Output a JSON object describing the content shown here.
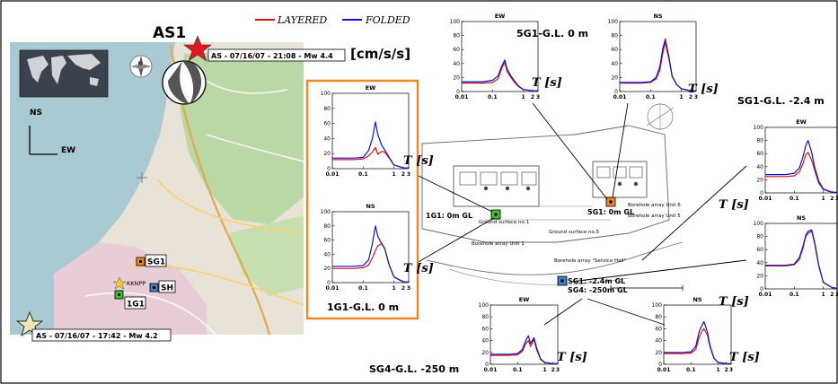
{
  "legend": {
    "series_a": "LAYERED",
    "series_b": "FOLDED",
    "color_a": "#e0101a",
    "color_b": "#0a14c8"
  },
  "event_main": {
    "name": "AS1",
    "label": "AS - 07/16/07 - 21:08 - Mw 4.4"
  },
  "event_second": {
    "label": "AS - 07/16/07 - 17:42 - Mw 4.2"
  },
  "units": "[cm/s/s]",
  "axes_labels": {
    "ns": "NS",
    "ew": "EW"
  },
  "stations": [
    {
      "id": "sg1",
      "label": "SG1"
    },
    {
      "id": "sh",
      "label": "SH"
    },
    {
      "id": "ig1",
      "label": "1G1"
    },
    {
      "id": "kknpp",
      "label": "KKNPP"
    }
  ],
  "plan": {
    "label_1g1": "1G1: 0m GL",
    "label_5g1": "5G1: 0m GL",
    "label_sg1": "SG1: -2.4m GL",
    "label_sg4": "SG4: -250m GL",
    "notes": [
      "Ground surface no.1",
      "Ground surface no.5",
      "Borehole array Unit 1",
      "Borehole array Unit 5",
      "Borehole array Unit 6",
      "Borehole array \"Service Hall\""
    ]
  },
  "group_titles": {
    "g1": "1G1-G.L. 0 m",
    "g5": "5G1-G.L. 0 m",
    "sg1": "SG1-G.L. -2.4 m",
    "sg4": "SG4-G.L. -250 m"
  },
  "t_label": "T [s]",
  "icons": [
    "world-map-icon",
    "compass-rose-icon",
    "beachball-icon",
    "red-star-icon",
    "yellow-star-icon"
  ],
  "chart_data": [
    {
      "id": "1g1-ew",
      "type": "line",
      "title": "EW",
      "x_scale": "log",
      "xlim": [
        0.01,
        3
      ],
      "ylim": [
        0,
        100
      ],
      "yticks": [
        0,
        20,
        40,
        60,
        80,
        100
      ],
      "xticks": [
        "0.01",
        "0.1",
        "1",
        "2",
        "3"
      ],
      "x": [
        0.01,
        0.05,
        0.1,
        0.15,
        0.2,
        0.25,
        0.3,
        0.4,
        0.5,
        0.7,
        1.0,
        2.0,
        3.0
      ],
      "series": [
        {
          "values": [
            12,
            12,
            13,
            17,
            22,
            28,
            19,
            23,
            22,
            14,
            5,
            1,
            1
          ]
        },
        {
          "values": [
            14,
            14,
            15,
            24,
            40,
            62,
            45,
            31,
            25,
            15,
            5,
            1,
            1
          ]
        }
      ]
    },
    {
      "id": "1g1-ns",
      "type": "line",
      "title": "NS",
      "x_scale": "log",
      "xlim": [
        0.01,
        3
      ],
      "ylim": [
        0,
        100
      ],
      "yticks": [
        0,
        20,
        40,
        60,
        80,
        100
      ],
      "xticks": [
        "0.01",
        "0.1",
        "1",
        "2",
        "3"
      ],
      "x": [
        0.01,
        0.05,
        0.1,
        0.15,
        0.2,
        0.25,
        0.3,
        0.4,
        0.5,
        0.7,
        1.0,
        2.0,
        3.0
      ],
      "series": [
        {
          "values": [
            20,
            20,
            21,
            25,
            35,
            45,
            52,
            55,
            48,
            25,
            8,
            1,
            1
          ]
        },
        {
          "values": [
            23,
            23,
            24,
            32,
            55,
            80,
            65,
            55,
            48,
            25,
            8,
            1,
            1
          ]
        }
      ]
    },
    {
      "id": "5g1-ew",
      "type": "line",
      "title": "EW",
      "x_scale": "log",
      "xlim": [
        0.01,
        3
      ],
      "ylim": [
        0,
        100
      ],
      "yticks": [
        0,
        20,
        40,
        60,
        80,
        100
      ],
      "xticks": [
        "0.01",
        "0.1",
        "1",
        "2",
        "3"
      ],
      "x": [
        0.01,
        0.05,
        0.1,
        0.15,
        0.2,
        0.25,
        0.3,
        0.4,
        0.5,
        0.7,
        1.0,
        2.0,
        3.0
      ],
      "series": [
        {
          "values": [
            12,
            12,
            13,
            18,
            33,
            42,
            28,
            20,
            14,
            7,
            3,
            1,
            1
          ]
        },
        {
          "values": [
            14,
            14,
            16,
            22,
            36,
            45,
            32,
            22,
            16,
            8,
            3,
            1,
            1
          ]
        }
      ]
    },
    {
      "id": "5g1-ns",
      "type": "line",
      "title": "NS",
      "x_scale": "log",
      "xlim": [
        0.01,
        3
      ],
      "ylim": [
        0,
        100
      ],
      "yticks": [
        0,
        20,
        40,
        60,
        80,
        100
      ],
      "xticks": [
        "0.01",
        "0.1",
        "1",
        "2",
        "3"
      ],
      "x": [
        0.01,
        0.05,
        0.1,
        0.15,
        0.2,
        0.25,
        0.3,
        0.4,
        0.5,
        0.7,
        1.0,
        2.0,
        3.0
      ],
      "series": [
        {
          "values": [
            12,
            12,
            13,
            18,
            30,
            55,
            70,
            45,
            22,
            10,
            4,
            1,
            1
          ]
        },
        {
          "values": [
            13,
            13,
            14,
            20,
            35,
            62,
            75,
            48,
            22,
            10,
            4,
            1,
            1
          ]
        }
      ]
    },
    {
      "id": "sg1-ew",
      "type": "line",
      "title": "EW",
      "x_scale": "log",
      "xlim": [
        0.01,
        3
      ],
      "ylim": [
        0,
        100
      ],
      "yticks": [
        0,
        20,
        40,
        60,
        80,
        100
      ],
      "xticks": [
        "0.01",
        "0.1",
        "1",
        "2",
        "3"
      ],
      "x": [
        0.01,
        0.05,
        0.1,
        0.15,
        0.2,
        0.25,
        0.3,
        0.4,
        0.5,
        0.7,
        1.0,
        2.0,
        3.0
      ],
      "series": [
        {
          "values": [
            25,
            25,
            26,
            32,
            45,
            58,
            62,
            50,
            35,
            15,
            5,
            1,
            1
          ]
        },
        {
          "values": [
            28,
            28,
            30,
            38,
            55,
            72,
            80,
            62,
            40,
            18,
            6,
            1,
            1
          ]
        }
      ]
    },
    {
      "id": "sg1-ns",
      "type": "line",
      "title": "NS",
      "x_scale": "log",
      "xlim": [
        0.01,
        3
      ],
      "ylim": [
        0,
        100
      ],
      "yticks": [
        0,
        20,
        40,
        60,
        80,
        100
      ],
      "xticks": [
        "0.01",
        "0.1",
        "1",
        "2",
        "3"
      ],
      "x": [
        0.01,
        0.05,
        0.1,
        0.15,
        0.2,
        0.25,
        0.3,
        0.4,
        0.5,
        0.7,
        1.0,
        2.0,
        3.0
      ],
      "series": [
        {
          "values": [
            35,
            35,
            37,
            45,
            62,
            80,
            85,
            88,
            70,
            35,
            10,
            2,
            1
          ]
        },
        {
          "values": [
            36,
            36,
            38,
            48,
            65,
            82,
            88,
            90,
            72,
            36,
            10,
            2,
            1
          ]
        }
      ]
    },
    {
      "id": "sg4-ew",
      "type": "line",
      "title": "EW",
      "x_scale": "log",
      "xlim": [
        0.01,
        3
      ],
      "ylim": [
        0,
        100
      ],
      "yticks": [
        0,
        20,
        40,
        60,
        80,
        100
      ],
      "xticks": [
        "0.01",
        "0.1",
        "1",
        "2",
        "3"
      ],
      "x": [
        0.01,
        0.05,
        0.1,
        0.15,
        0.2,
        0.25,
        0.3,
        0.4,
        0.5,
        0.7,
        1.0,
        2.0,
        3.0
      ],
      "series": [
        {
          "values": [
            15,
            15,
            16,
            22,
            35,
            40,
            30,
            42,
            25,
            8,
            3,
            1,
            1
          ]
        },
        {
          "values": [
            17,
            17,
            18,
            25,
            40,
            48,
            35,
            45,
            28,
            9,
            3,
            1,
            1
          ]
        }
      ]
    },
    {
      "id": "sg4-ns",
      "type": "line",
      "title": "NS",
      "x_scale": "log",
      "xlim": [
        0.01,
        3
      ],
      "ylim": [
        0,
        100
      ],
      "yticks": [
        0,
        20,
        40,
        60,
        80,
        100
      ],
      "xticks": [
        "0.01",
        "0.1",
        "1",
        "2",
        "3"
      ],
      "x": [
        0.01,
        0.05,
        0.1,
        0.15,
        0.2,
        0.25,
        0.3,
        0.4,
        0.5,
        0.7,
        1.0,
        2.0,
        3.0
      ],
      "series": [
        {
          "values": [
            18,
            18,
            19,
            25,
            45,
            55,
            60,
            50,
            30,
            10,
            3,
            1,
            1
          ]
        },
        {
          "values": [
            20,
            20,
            21,
            30,
            55,
            65,
            72,
            55,
            32,
            10,
            3,
            1,
            1
          ]
        }
      ]
    }
  ]
}
